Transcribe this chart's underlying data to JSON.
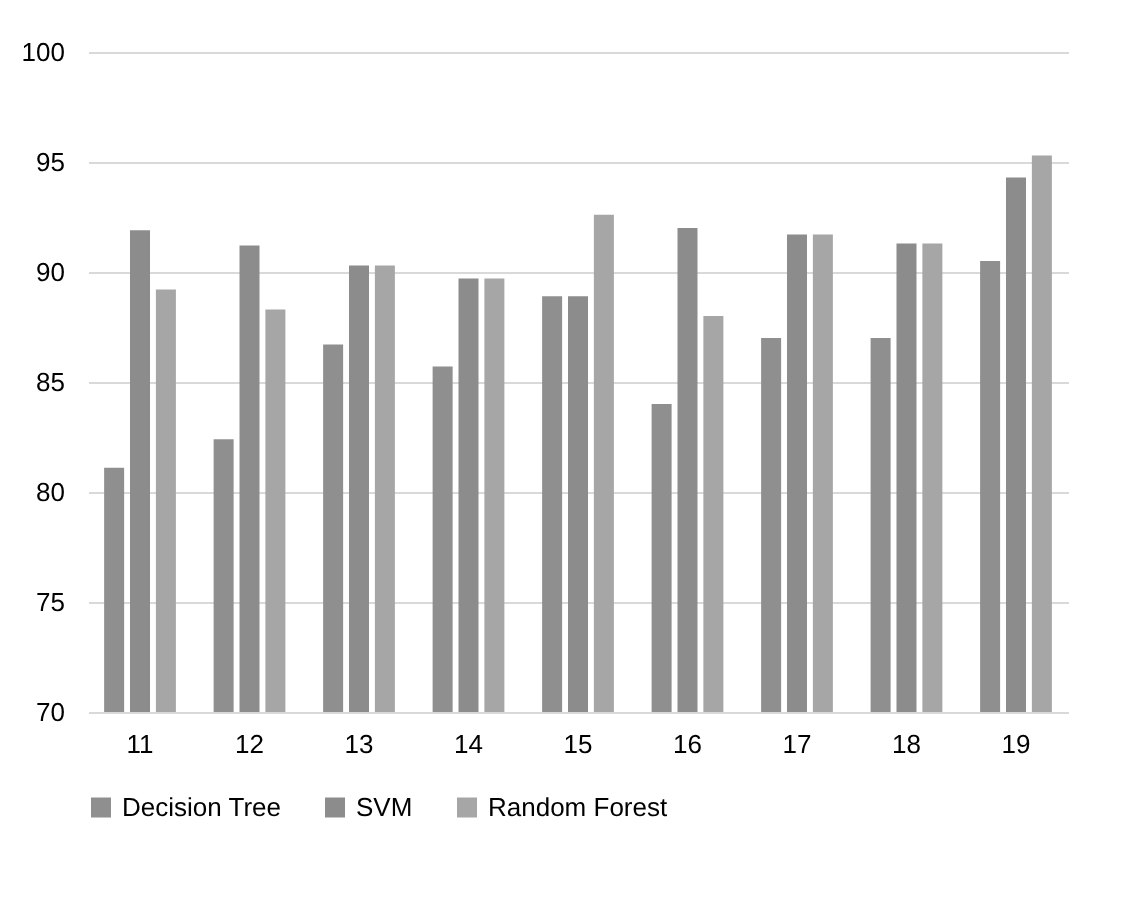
{
  "chart_data": {
    "type": "bar",
    "categories": [
      "11",
      "12",
      "13",
      "14",
      "15",
      "16",
      "17",
      "18",
      "19"
    ],
    "series": [
      {
        "name": "Decision Tree",
        "color": "#8f8f8f",
        "values": [
          81.1,
          82.4,
          86.7,
          85.7,
          88.9,
          84.0,
          87.0,
          87.0,
          90.5
        ]
      },
      {
        "name": "SVM",
        "color": "#8c8c8c",
        "values": [
          91.9,
          91.2,
          90.3,
          89.7,
          88.9,
          92.0,
          91.7,
          91.3,
          94.3
        ]
      },
      {
        "name": "Random Forest",
        "color": "#a6a6a6",
        "values": [
          89.2,
          88.3,
          90.3,
          89.7,
          92.6,
          88.0,
          91.7,
          91.3,
          95.3
        ]
      }
    ],
    "ylim": [
      70,
      100
    ],
    "yticks": [
      70,
      75,
      80,
      85,
      90,
      95,
      100
    ],
    "grid": "y",
    "legend": "bottom"
  }
}
